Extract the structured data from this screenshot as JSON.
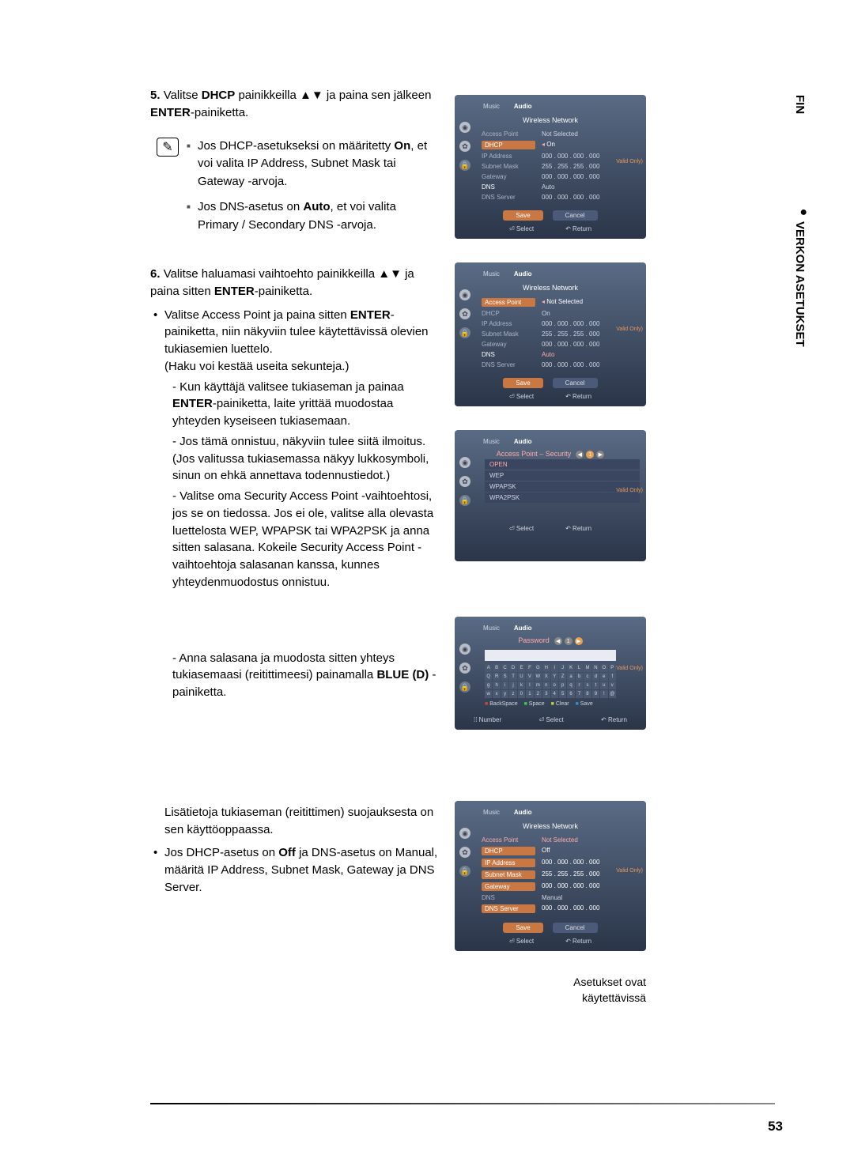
{
  "side": {
    "lang": "FIN",
    "section": "VERKON ASETUKSET",
    "bullet": "●"
  },
  "step5": {
    "num": "5.",
    "text_a": "Valitse ",
    "dhcp": "DHCP",
    "text_b": " painikkeilla ▲▼ ja paina sen jälkeen ",
    "enter": "ENTER",
    "text_c": "-painiketta."
  },
  "notes": {
    "icon": "✎",
    "n1_a": "Jos DHCP-asetukseksi on määritetty ",
    "n1_on": "On",
    "n1_b": ", et voi valita IP Address, Subnet Mask tai Gateway -arvoja.",
    "n2_a": "Jos DNS-asetus on ",
    "n2_auto": "Auto",
    "n2_b": ", et voi valita Primary / Secondary DNS -arvoja."
  },
  "step6": {
    "num": "6.",
    "text_a": "Valitse haluamasi vaihtoehto painikkeilla ▲▼ ja paina sitten ",
    "enter": "ENTER",
    "text_b": "-painiketta.",
    "b1_a": "Valitse Access Point ja paina sitten ",
    "b1_enter": "ENTER",
    "b1_b": "-painiketta, niin näkyviin tulee käytettävissä olevien tukiasemien luettelo.",
    "b1_c": "(Haku voi kestää useita sekunteja.)",
    "d1_a": "- Kun käyttäjä valitsee tukiaseman ja painaa ",
    "d1_enter": "ENTER",
    "d1_b": "-painiketta, laite yrittää muodostaa yhteyden kyseiseen tukiasemaan.",
    "d2": "- Jos tämä onnistuu, näkyviin tulee siitä ilmoitus. (Jos valitussa tukiasemassa näkyy lukkosymboli, sinun on ehkä annettava todennustiedot.)",
    "d3": "- Valitse oma Security Access Point -vaihtoehtosi, jos se on tiedossa. Jos ei ole, valitse alla olevasta luettelosta WEP, WPAPSK tai WPA2PSK ja anna sitten salasana. Kokeile Security Access Point -vaihtoehtoja salasanan kanssa, kunnes yhteydenmuodostus onnistuu.",
    "d4_a": "- Anna salasana ja muodosta sitten yhteys tukiasemaasi (reitittimeesi) painamalla ",
    "d4_blue": "BLUE (D)",
    "d4_b": " -painiketta.",
    "router_info": "Lisätietoja tukiaseman (reitittimen) suojauksesta on sen käyttöoppaassa.",
    "b2_a": "Jos DHCP-asetus on ",
    "b2_off": "Off",
    "b2_b": " ja DNS-asetus on Manual, määritä IP Address, Subnet Mask, Gateway ja DNS Server."
  },
  "caption": {
    "line1": "Asetukset ovat",
    "line2": "käytettävissä"
  },
  "pagenum": "53",
  "screens": {
    "tabs": {
      "music": "Music",
      "audio": "Audio"
    },
    "wireless": "Wireless Network",
    "labels": {
      "ap": "Access Point",
      "dhcp": "DHCP",
      "ip": "IP Address",
      "subnet": "Subnet Mask",
      "gateway": "Gateway",
      "dns": "DNS",
      "dnsserver": "DNS Server"
    },
    "vals": {
      "ns": "Not Selected",
      "on": "On",
      "off": "Off",
      "auto": "Auto",
      "manual": "Manual",
      "ip0": "000 . 000 . 000 . 000",
      "subnet0": "255 . 255 . 255 . 000"
    },
    "btns": {
      "save": "Save",
      "cancel": "Cancel"
    },
    "footer": {
      "select": "⏎ Select",
      "return": "↶ Return",
      "number": "⁞⁞ Number"
    },
    "valid": "Valid Only)",
    "sec_title": "Access Point – Security",
    "sec": {
      "open": "OPEN",
      "wep": "WEP",
      "wpapsk": "WPAPSK",
      "wpa2psk": "WPA2PSK"
    },
    "pw_title": "Password",
    "kb_actions": {
      "bs": "BackSpace",
      "sp": "Space",
      "cl": "Clear",
      "sv": "Save"
    }
  }
}
